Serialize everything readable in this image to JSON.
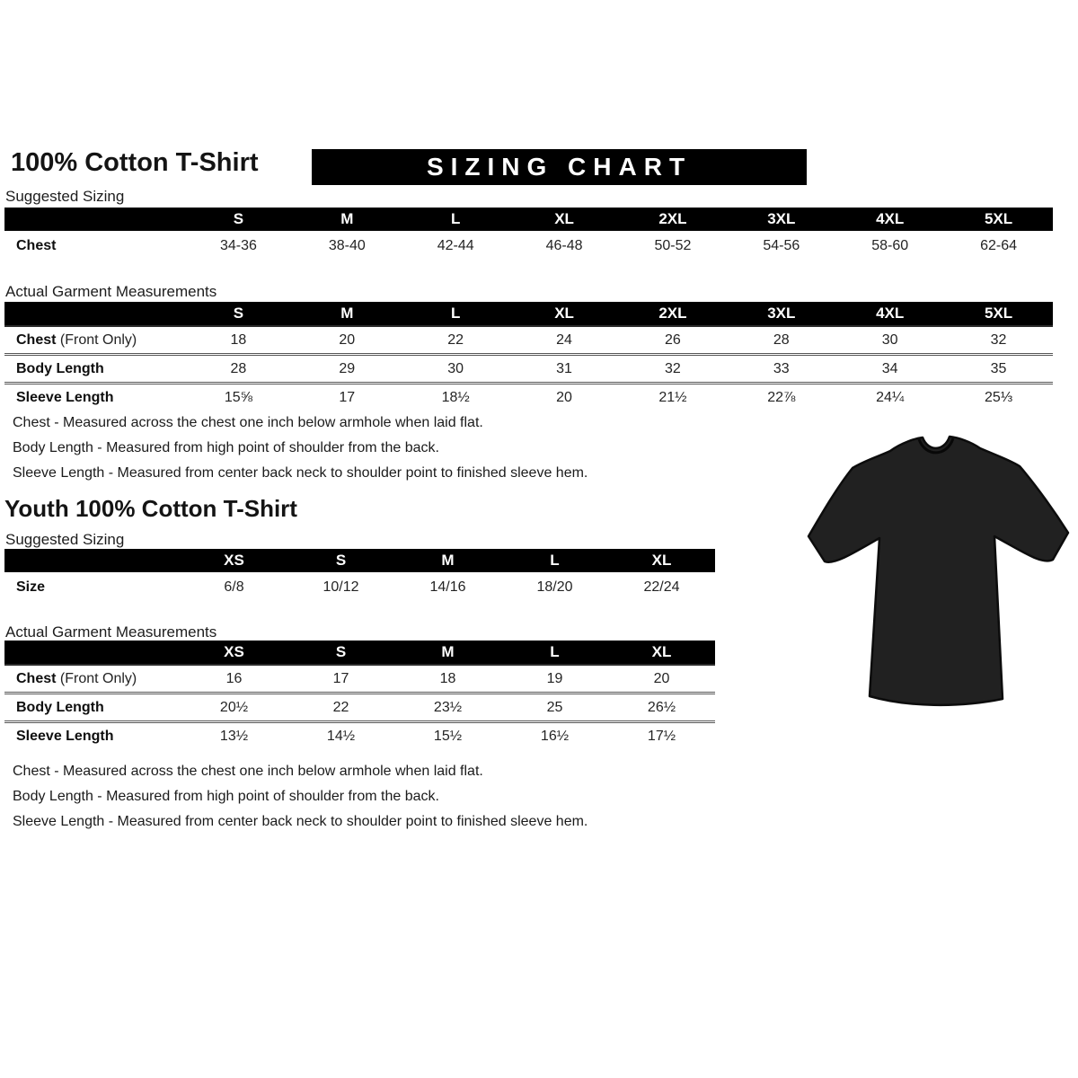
{
  "adult": {
    "title": "100% Cotton T-Shirt",
    "banner": "SIZING CHART",
    "suggested_label": "Suggested Sizing",
    "suggested_table": {
      "columns": [
        "S",
        "M",
        "L",
        "XL",
        "2XL",
        "3XL",
        "4XL",
        "5XL"
      ],
      "rows": [
        {
          "label": "Chest",
          "values": [
            "34-36",
            "38-40",
            "42-44",
            "46-48",
            "50-52",
            "54-56",
            "58-60",
            "62-64"
          ]
        }
      ]
    },
    "actual_label": "Actual Garment Measurements",
    "actual_table": {
      "columns": [
        "S",
        "M",
        "L",
        "XL",
        "2XL",
        "3XL",
        "4XL",
        "5XL"
      ],
      "rows": [
        {
          "label": "Chest",
          "note": " (Front Only)",
          "values": [
            "18",
            "20",
            "22",
            "24",
            "26",
            "28",
            "30",
            "32"
          ]
        },
        {
          "label": "Body Length",
          "values": [
            "28",
            "29",
            "30",
            "31",
            "32",
            "33",
            "34",
            "35"
          ]
        },
        {
          "label": "Sleeve Length",
          "values": [
            "15⅝",
            "17",
            "18½",
            "20",
            "21½",
            "22⅞",
            "24¼",
            "25⅓"
          ]
        }
      ]
    },
    "notes": [
      "Chest - Measured across the chest one inch below armhole when laid flat.",
      "Body Length - Measured from high point of shoulder from the back.",
      "Sleeve Length - Measured from center back neck to shoulder point to finished sleeve hem."
    ]
  },
  "youth": {
    "title": "Youth 100% Cotton T-Shirt",
    "suggested_label": "Suggested Sizing",
    "suggested_table": {
      "columns": [
        "XS",
        "S",
        "M",
        "L",
        "XL"
      ],
      "rows": [
        {
          "label": "Size",
          "values": [
            "6/8",
            "10/12",
            "14/16",
            "18/20",
            "22/24"
          ]
        }
      ]
    },
    "actual_label": "Actual Garment Measurements",
    "actual_table": {
      "columns": [
        "XS",
        "S",
        "M",
        "L",
        "XL"
      ],
      "rows": [
        {
          "label": "Chest",
          "note": " (Front Only)",
          "values": [
            "16",
            "17",
            "18",
            "19",
            "20"
          ]
        },
        {
          "label": "Body Length",
          "values": [
            "20½",
            "22",
            "23½",
            "25",
            "26½"
          ]
        },
        {
          "label": "Sleeve Length",
          "values": [
            "13½",
            "14½",
            "15½",
            "16½",
            "17½"
          ]
        }
      ]
    },
    "notes": [
      "Chest - Measured across the chest one inch below armhole when laid flat.",
      "Body Length - Measured from high point of shoulder from the back.",
      "Sleeve Length - Measured from center back neck to shoulder point to finished sleeve hem."
    ]
  },
  "image": {
    "alt": "black short-sleeve crew-neck t-shirt"
  },
  "colors": {
    "banner_bg": "#000000",
    "banner_text": "#ffffff",
    "table_header_bg": "#000000",
    "shirt_fill": "#212121"
  }
}
